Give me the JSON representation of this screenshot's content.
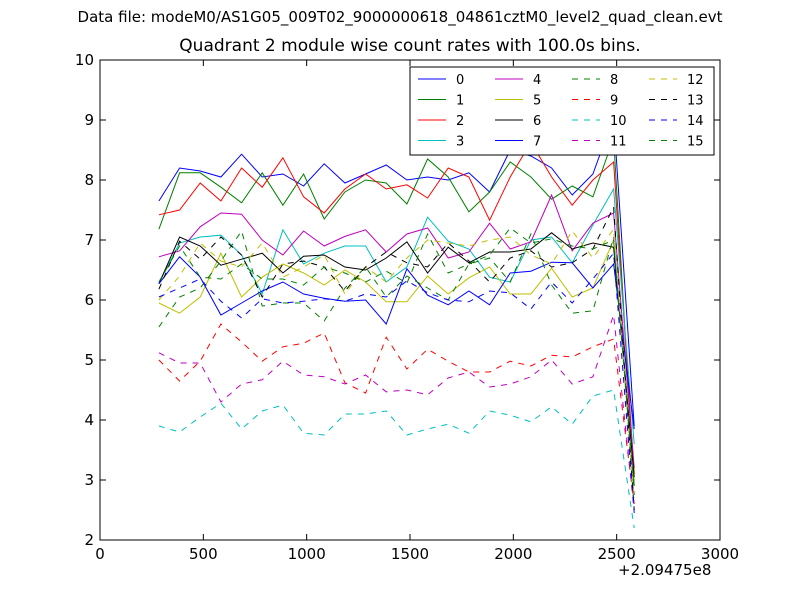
{
  "chart_data": {
    "type": "line",
    "suptitle": "Data file: modeM0/AS1G05_009T02_9000000618_04861cztM0_level2_quad_clean.evt",
    "title": "Quadrant 2 module wise count rates with 100.0s bins.",
    "xlabel": "",
    "ylabel": "",
    "x_offset_label": "+2.09475e8",
    "xlim": [
      0,
      3000
    ],
    "ylim": [
      2,
      10
    ],
    "xticks": [
      "0",
      "500",
      "1000",
      "1500",
      "2000",
      "2500",
      "3000"
    ],
    "yticks": [
      "2",
      "3",
      "4",
      "5",
      "6",
      "7",
      "8",
      "9",
      "10"
    ],
    "grid": false,
    "legend_position": "top-right",
    "x": [
      285,
      385,
      485,
      585,
      685,
      785,
      885,
      985,
      1085,
      1185,
      1285,
      1385,
      1485,
      1585,
      1685,
      1785,
      1885,
      1985,
      2085,
      2185,
      2285,
      2385,
      2485,
      2585
    ],
    "series": [
      {
        "name": "0",
        "color": "#0000ff",
        "dash": "solid",
        "values": [
          7.65,
          8.2,
          8.15,
          8.05,
          8.43,
          8.05,
          8.1,
          7.9,
          8.27,
          7.95,
          8.1,
          8.25,
          8.0,
          8.05,
          8.0,
          8.12,
          7.8,
          8.5,
          8.4,
          8.2,
          7.75,
          8.1,
          9.05,
          3.9
        ]
      },
      {
        "name": "1",
        "color": "#008000",
        "dash": "solid",
        "values": [
          7.18,
          8.12,
          8.12,
          7.88,
          7.62,
          8.12,
          7.58,
          8.1,
          7.35,
          7.8,
          8.0,
          7.95,
          7.6,
          8.35,
          8.05,
          7.47,
          7.8,
          8.3,
          8.05,
          7.68,
          7.9,
          7.72,
          8.7,
          2.9
        ]
      },
      {
        "name": "2",
        "color": "#ff0000",
        "dash": "solid",
        "values": [
          7.42,
          7.5,
          7.95,
          7.65,
          8.2,
          7.88,
          8.37,
          7.72,
          7.45,
          7.85,
          8.1,
          7.85,
          7.92,
          7.7,
          8.2,
          8.05,
          7.33,
          8.05,
          8.63,
          8.05,
          7.58,
          8.0,
          8.3,
          3.1
        ]
      },
      {
        "name": "3",
        "color": "#00bfbf",
        "dash": "solid",
        "values": [
          6.28,
          6.95,
          7.05,
          7.08,
          6.75,
          6.1,
          7.17,
          6.6,
          6.78,
          6.9,
          6.9,
          6.3,
          6.55,
          7.38,
          6.98,
          6.85,
          6.38,
          6.3,
          7.0,
          7.05,
          6.62,
          7.25,
          7.85,
          3.6
        ]
      },
      {
        "name": "4",
        "color": "#bf00bf",
        "dash": "solid",
        "values": [
          6.72,
          6.82,
          7.22,
          7.45,
          7.43,
          7.0,
          6.75,
          7.15,
          6.9,
          7.06,
          7.17,
          6.8,
          7.1,
          7.2,
          6.7,
          6.8,
          7.28,
          6.85,
          6.97,
          7.75,
          6.82,
          7.28,
          7.45,
          3.2
        ]
      },
      {
        "name": "5",
        "color": "#bfbf00",
        "dash": "solid",
        "values": [
          5.95,
          5.78,
          6.05,
          6.78,
          6.05,
          6.38,
          6.6,
          6.45,
          6.25,
          6.5,
          6.3,
          5.97,
          5.97,
          6.4,
          6.1,
          6.37,
          6.55,
          6.1,
          6.1,
          6.53,
          6.05,
          6.2,
          7.0,
          3.0
        ]
      },
      {
        "name": "6",
        "color": "#000000",
        "dash": "solid",
        "values": [
          6.27,
          7.05,
          6.9,
          6.58,
          6.68,
          6.78,
          6.45,
          6.73,
          6.75,
          6.55,
          6.5,
          6.7,
          6.97,
          6.45,
          6.88,
          6.62,
          6.8,
          6.8,
          6.85,
          7.12,
          6.85,
          6.95,
          6.88,
          3.05
        ]
      },
      {
        "name": "7",
        "color": "#0000ff",
        "dash": "solid",
        "values": [
          6.27,
          6.72,
          6.38,
          5.75,
          5.95,
          6.15,
          6.3,
          6.1,
          6.03,
          5.98,
          6.0,
          5.6,
          6.52,
          6.08,
          5.92,
          6.15,
          5.92,
          6.45,
          6.48,
          6.63,
          6.62,
          6.2,
          6.6,
          3.85
        ]
      },
      {
        "name": "8",
        "color": "#008000",
        "dash": "dashed",
        "values": [
          5.55,
          6.05,
          6.2,
          6.65,
          7.15,
          5.9,
          5.95,
          5.95,
          5.65,
          6.2,
          6.55,
          6.05,
          6.4,
          6.2,
          6.0,
          6.6,
          6.7,
          6.3,
          7.1,
          6.25,
          5.78,
          5.82,
          7.05,
          2.9
        ]
      },
      {
        "name": "9",
        "color": "#ff0000",
        "dash": "dashed",
        "values": [
          5.0,
          4.65,
          4.98,
          5.6,
          5.3,
          4.98,
          5.22,
          5.28,
          5.45,
          4.62,
          4.45,
          5.38,
          4.85,
          5.18,
          4.98,
          4.8,
          4.8,
          4.98,
          4.9,
          5.08,
          5.05,
          5.22,
          5.35,
          2.6
        ]
      },
      {
        "name": "10",
        "color": "#00bfbf",
        "dash": "dashed",
        "values": [
          3.9,
          3.8,
          4.05,
          4.28,
          3.85,
          4.15,
          4.25,
          3.78,
          3.75,
          4.1,
          4.1,
          4.15,
          3.75,
          3.85,
          3.93,
          3.78,
          4.15,
          4.08,
          3.97,
          4.22,
          3.93,
          4.4,
          4.5,
          2.2
        ]
      },
      {
        "name": "11",
        "color": "#bf00bf",
        "dash": "dashed",
        "values": [
          5.12,
          4.95,
          4.95,
          4.3,
          4.6,
          4.67,
          4.98,
          4.75,
          4.72,
          4.6,
          4.75,
          4.47,
          4.5,
          4.42,
          4.7,
          4.8,
          4.55,
          4.6,
          4.72,
          5.0,
          4.6,
          4.72,
          5.75,
          2.5
        ]
      },
      {
        "name": "12",
        "color": "#bfbf00",
        "dash": "dashed",
        "values": [
          6.0,
          6.4,
          6.95,
          6.65,
          6.55,
          6.95,
          6.38,
          6.55,
          6.75,
          6.1,
          6.55,
          6.3,
          6.7,
          7.0,
          6.95,
          6.9,
          7.0,
          7.05,
          6.75,
          6.6,
          7.15,
          6.7,
          7.18,
          2.7
        ]
      },
      {
        "name": "13",
        "color": "#000000",
        "dash": "dashed",
        "values": [
          6.18,
          6.98,
          6.68,
          7.05,
          6.75,
          6.05,
          6.6,
          6.65,
          6.55,
          6.15,
          6.55,
          6.8,
          6.62,
          6.55,
          6.95,
          6.65,
          6.3,
          6.7,
          6.82,
          6.55,
          6.62,
          6.85,
          7.55,
          2.5
        ]
      },
      {
        "name": "14",
        "color": "#0000ff",
        "dash": "dashed",
        "values": [
          6.05,
          6.2,
          6.35,
          5.98,
          5.7,
          6.02,
          5.95,
          5.98,
          6.02,
          5.98,
          6.1,
          6.05,
          6.32,
          6.12,
          6.0,
          5.97,
          6.15,
          6.12,
          5.85,
          6.3,
          5.95,
          6.35,
          6.78,
          2.45
        ]
      },
      {
        "name": "15",
        "color": "#008000",
        "dash": "dashed",
        "values": [
          6.3,
          6.9,
          6.38,
          6.35,
          6.6,
          6.35,
          6.35,
          6.25,
          6.55,
          6.45,
          6.3,
          6.48,
          6.28,
          7.1,
          6.45,
          6.6,
          6.75,
          7.2,
          6.95,
          7.02,
          6.9,
          6.85,
          7.0,
          2.75
        ]
      }
    ]
  }
}
